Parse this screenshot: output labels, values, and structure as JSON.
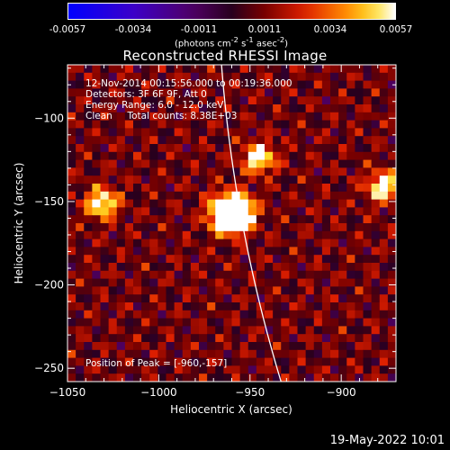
{
  "colorbar": {
    "ticks": [
      "-0.0057",
      "-0.0034",
      "-0.0011",
      "0.0011",
      "0.0034",
      "0.0057"
    ],
    "units_html": "(photons cm<sup>-2</sup> s<sup>-1</sup> asec<sup>-2</sup>)",
    "range": [
      -0.0057,
      0.0057
    ]
  },
  "chart_data": {
    "type": "heatmap",
    "title": "Reconstructed RHESSI Image",
    "xlabel": "Heliocentric X (arcsec)",
    "ylabel": "Heliocentric Y (arcsec)",
    "xlim": [
      -1050,
      -870
    ],
    "ylim": [
      -258,
      -68
    ],
    "xticks": [
      -1050,
      -1000,
      -950,
      -900
    ],
    "xtick_labels": [
      "−1050",
      "−1000",
      "−950",
      "−900"
    ],
    "yticks": [
      -250,
      -200,
      -150,
      -100
    ],
    "ytick_labels": [
      "−250",
      "−200",
      "−150",
      "−100"
    ],
    "peak": {
      "x": -960,
      "y": -157
    },
    "secondary_sources": [
      {
        "x": -1031,
        "y": -151
      },
      {
        "x": -877,
        "y": -141
      },
      {
        "x": -945,
        "y": -124
      }
    ]
  },
  "annotations": {
    "time": "12-Nov-2014 00:15:56.000 to 00:19:36.000",
    "detectors": "Detectors: 3F 6F 9F, Att 0",
    "energy": "Energy Range: 6.0 - 12.0 keV",
    "clean": "Clean     Total counts: 8.38E+03",
    "peak_label": "Position of Peak = [-960,-157]"
  },
  "footer": {
    "date": "19-May-2022 10:01"
  },
  "colors": {
    "background": "#000000",
    "foreground": "#ffffff",
    "limb": "#ffffff"
  }
}
